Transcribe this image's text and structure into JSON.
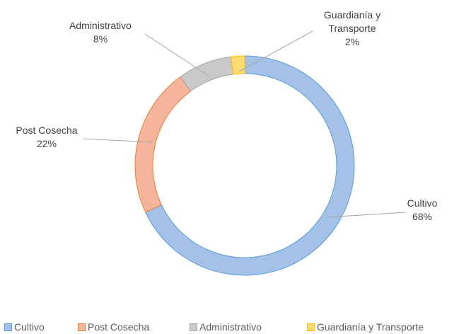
{
  "chart_data": {
    "type": "donut",
    "categories": [
      "Cultivo",
      "Post Cosecha",
      "Administrativo",
      "Guardianía y Transporte"
    ],
    "values": [
      68,
      22,
      8,
      2
    ],
    "value_labels": [
      "68%",
      "22%",
      "8%",
      "2%"
    ],
    "colors": [
      "#a4c2e8",
      "#f5b59c",
      "#c9c9c9",
      "#ffd971"
    ],
    "legend": "bottom"
  }
}
